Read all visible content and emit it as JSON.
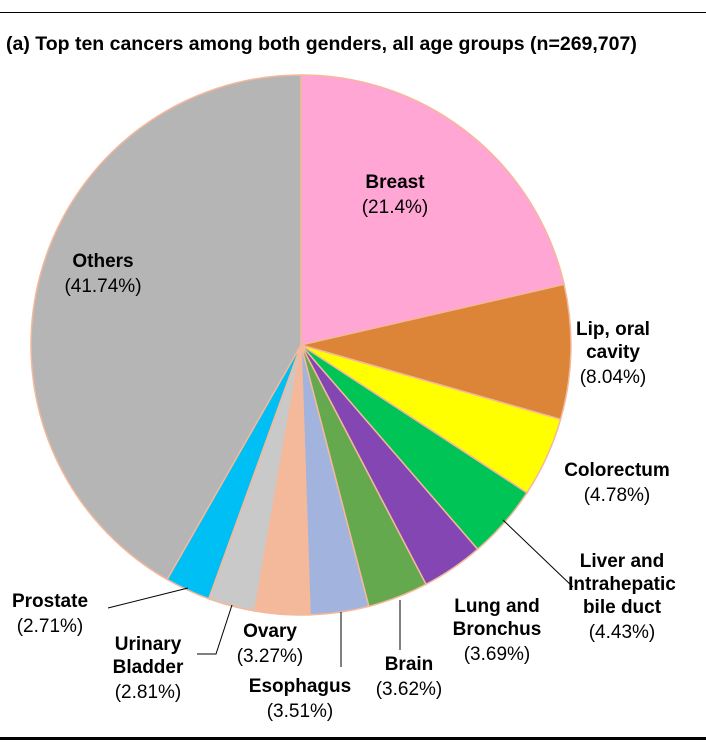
{
  "chart_data": {
    "type": "pie",
    "title": "(a) Top ten cancers among both genders, all age groups (n=269,707)",
    "slices": [
      {
        "label": [
          "Breast"
        ],
        "pct_text": "(21.4%)",
        "value": 21.4,
        "color": "#ffa6d5"
      },
      {
        "label": [
          "Lip, oral",
          "cavity"
        ],
        "pct_text": "(8.04%)",
        "value": 8.04,
        "color": "#dc8538"
      },
      {
        "label": [
          "Colorectum"
        ],
        "pct_text": "(4.78%)",
        "value": 4.78,
        "color": "#ffff00"
      },
      {
        "label": [
          "Liver and",
          "Intrahepatic",
          "bile duct"
        ],
        "pct_text": "(4.43%)",
        "value": 4.43,
        "color": "#00c456"
      },
      {
        "label": [
          "Lung and",
          "Bronchus"
        ],
        "pct_text": "(3.69%)",
        "value": 3.69,
        "color": "#8446b3"
      },
      {
        "label": [
          "Brain"
        ],
        "pct_text": "(3.62%)",
        "value": 3.62,
        "color": "#65a94e"
      },
      {
        "label": [
          "Esophagus"
        ],
        "pct_text": "(3.51%)",
        "value": 3.51,
        "color": "#a2b4de"
      },
      {
        "label": [
          "Ovary"
        ],
        "pct_text": "(3.27%)",
        "value": 3.27,
        "color": "#f4b89a"
      },
      {
        "label": [
          "Urinary",
          "Bladder"
        ],
        "pct_text": "(2.81%)",
        "value": 2.81,
        "color": "#c9c9c9"
      },
      {
        "label": [
          "Prostate"
        ],
        "pct_text": "(2.71%)",
        "value": 2.71,
        "color": "#00bff5"
      },
      {
        "label": [
          "Others"
        ],
        "pct_text": "(41.74%)",
        "value": 41.74,
        "color": "#b5b5b5"
      }
    ],
    "slice_border_color": "#f4b89a",
    "legend": "none"
  }
}
